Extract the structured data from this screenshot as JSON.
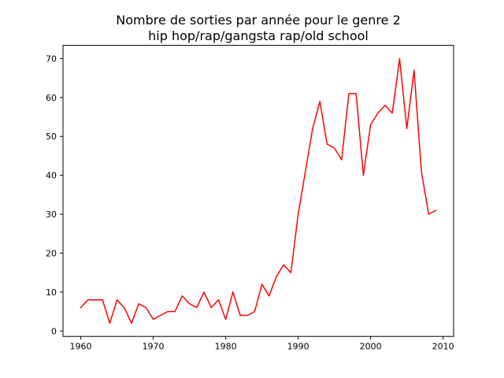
{
  "figure": {
    "background": "#ffffff",
    "title_line1": "Nombre de sorties par année pour le genre 2",
    "title_line2": "hip hop/rap/gangsta rap/old school"
  },
  "chart_data": {
    "type": "line",
    "title": "Nombre de sorties par année pour le genre 2\nhip hop/rap/gangsta rap/old school",
    "xlabel": "",
    "ylabel": "",
    "grid": false,
    "legend": null,
    "line_color": "#ff0000",
    "line_width": 1.5,
    "frame_color": "#000000",
    "xlim": [
      1957.55,
      2011.45
    ],
    "ylim": [
      -1.4,
      73.4
    ],
    "xticks": [
      1960,
      1970,
      1980,
      1990,
      2000,
      2010
    ],
    "yticks": [
      0,
      10,
      20,
      30,
      40,
      50,
      60,
      70
    ],
    "x": [
      1960,
      1961,
      1962,
      1963,
      1964,
      1965,
      1966,
      1967,
      1968,
      1969,
      1970,
      1971,
      1972,
      1973,
      1974,
      1975,
      1976,
      1977,
      1978,
      1979,
      1980,
      1981,
      1982,
      1983,
      1984,
      1985,
      1986,
      1987,
      1988,
      1989,
      1990,
      1991,
      1992,
      1993,
      1994,
      1995,
      1996,
      1997,
      1998,
      1999,
      2000,
      2001,
      2002,
      2003,
      2004,
      2005,
      2006,
      2007,
      2008,
      2009
    ],
    "values": [
      6,
      8,
      8,
      8,
      2,
      8,
      6,
      2,
      7,
      6,
      3,
      4,
      5,
      5,
      9,
      7,
      6,
      10,
      6,
      8,
      3,
      10,
      4,
      4,
      5,
      12,
      9,
      14,
      17,
      15,
      30,
      41,
      52,
      59,
      48,
      47,
      44,
      61,
      61,
      40,
      53,
      56,
      58,
      56,
      70,
      52,
      67,
      41,
      30,
      31
    ]
  }
}
